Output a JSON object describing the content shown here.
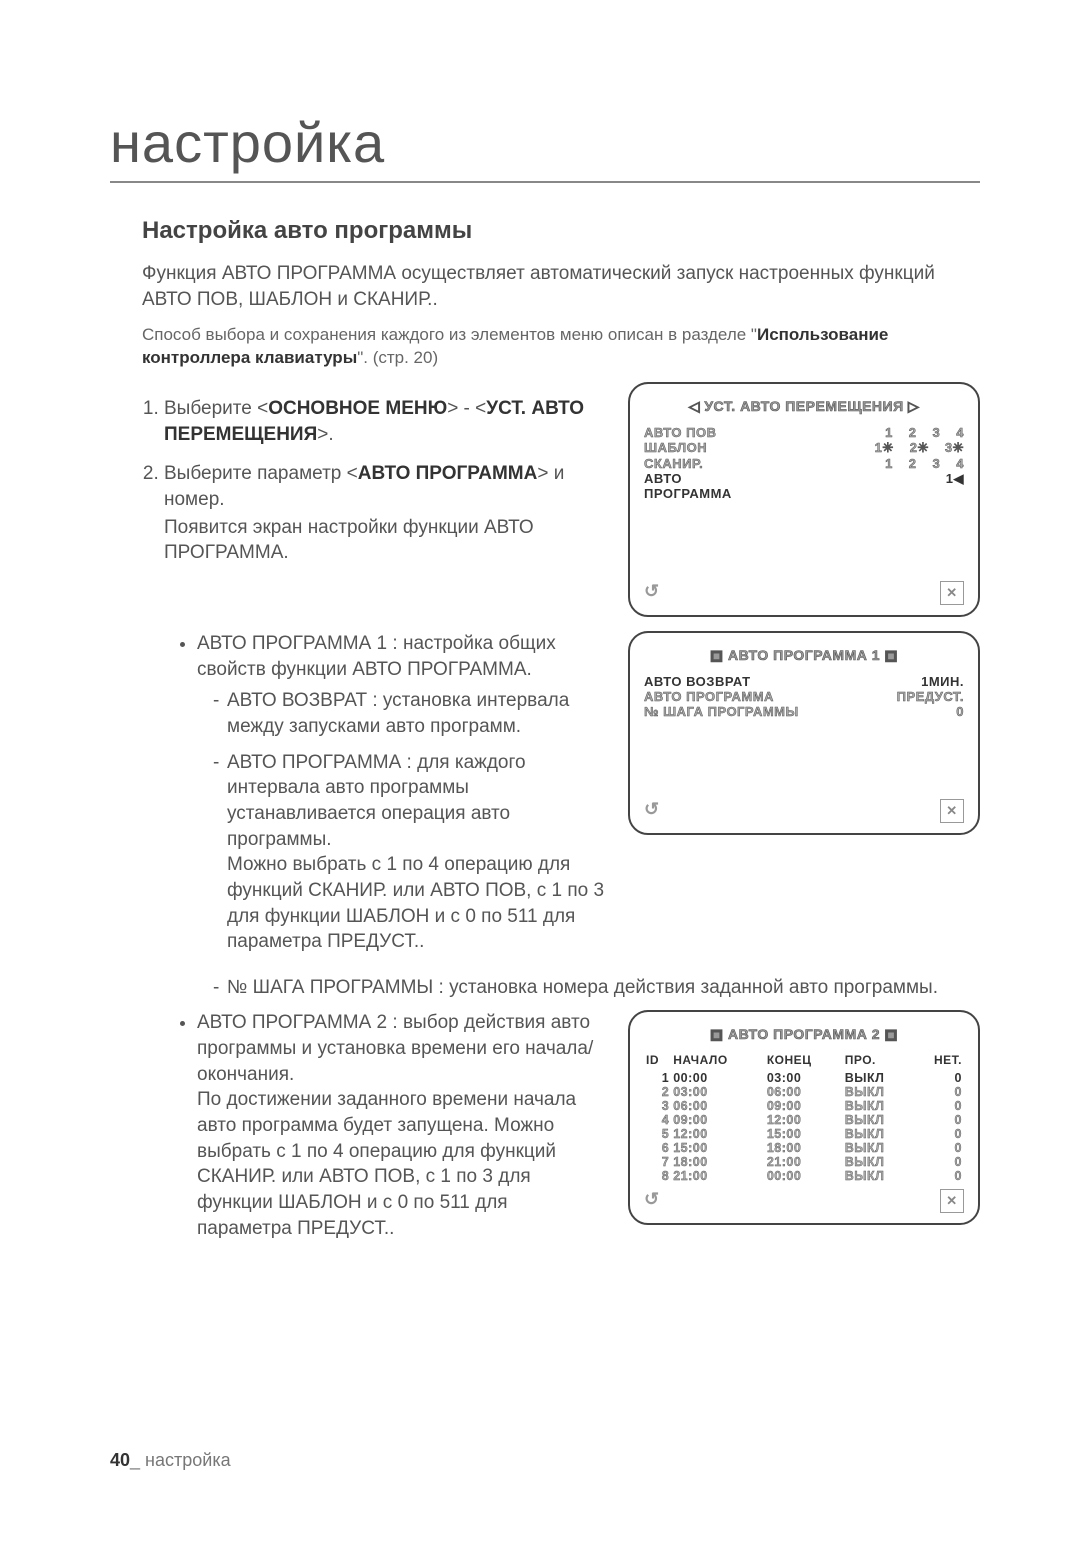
{
  "title": "настройка",
  "section": "Настройка авто программы",
  "intro": "Функция АВТО ПРОГРАММА осуществляет автоматический запуск настроенных функций АВТО ПОВ, ШАБЛОН и СКАНИР..",
  "note_pre": "Способ выбора и сохранения каждого из элементов меню описан в разделе \"",
  "note_bold": "Использование контроллера клавиатуры",
  "note_post": "\". (стр. 20)",
  "step1_pre": "Выберите <",
  "step1_b1": "ОСНОВНОЕ МЕНЮ",
  "step1_mid": "> - <",
  "step1_b2": "УСТ. АВТО ПЕРЕМЕЩЕНИЯ",
  "step1_post": ">.",
  "step2_pre": "Выберите параметр <",
  "step2_b": "АВТО ПРОГРАММА",
  "step2_post": "> и номер.",
  "step2_sub": "Появится экран настройки функции АВТО ПРОГРАММА.",
  "bul1": "АВТО ПРОГРАММА 1 : настройка общих свойств функции АВТО ПРОГРАММА.",
  "d1": "АВТО ВОЗВРАТ : установка интервала между запусками авто программ.",
  "d2a": "АВТО ПРОГРАММА : для каждого интервала авто программы устанавливается операция авто программы.",
  "d2b": "Можно выбрать с 1 по 4 операцию для функций СКАНИР. или АВТО ПОВ, с 1 по 3 для функции ШАБЛОН и с 0 по 511 для параметра ПРЕДУСТ..",
  "d3": "№ ШАГА ПРОГРАММЫ : установка номера действия заданной авто программы.",
  "bul2a": "АВТО ПРОГРАММА 2 : выбор действия авто программы и установка времени его начала/окончания.",
  "bul2b": "По достижении заданного времени начала авто программа будет запущена. Можно выбрать с 1 по 4 операцию для функций СКАНИР. или АВТО ПОВ, с 1 по 3 для функции ШАБЛОН и с 0 по 511 для параметра ПРЕДУСТ..",
  "osd1": {
    "title": "◁  УСТ. АВТО ПЕРЕМЕЩЕНИЯ  ▷",
    "rows": [
      {
        "label": "АВТО ПОВ",
        "nums": [
          "1",
          "2",
          "3",
          "4"
        ]
      },
      {
        "label": "ШАБЛОН",
        "nums": [
          "",
          "1✳",
          "2✳",
          "3✳"
        ]
      },
      {
        "label": "СКАНИР.",
        "nums": [
          "1",
          "2",
          "3",
          "4"
        ]
      }
    ],
    "selected": {
      "label": "АВТО ПРОГРАММА",
      "value": "1◀"
    }
  },
  "osd2": {
    "title": "▣  АВТО ПРОГРАММА 1  ▣",
    "rows": [
      {
        "label": "АВТО ВОЗВРАТ",
        "value": "1МИН.",
        "sel": true
      },
      {
        "label": "АВТО ПРОГРАММА",
        "value": "ПРЕДУСТ."
      },
      {
        "label": "№ ШАГА ПРОГРАММЫ",
        "value": "0"
      }
    ]
  },
  "osd3": {
    "title": "▣  АВТО ПРОГРАММА 2  ▣",
    "headers": [
      "ID",
      "НАЧАЛО",
      "КОНЕЦ",
      "ПРО.",
      "НЕТ."
    ],
    "rows": [
      {
        "id": "1",
        "start": "00:00",
        "end": "03:00",
        "pro": "ВЫКЛ",
        "net": "0",
        "sel": true
      },
      {
        "id": "2",
        "start": "03:00",
        "end": "06:00",
        "pro": "ВЫКЛ",
        "net": "0"
      },
      {
        "id": "3",
        "start": "06:00",
        "end": "09:00",
        "pro": "ВЫКЛ",
        "net": "0"
      },
      {
        "id": "4",
        "start": "09:00",
        "end": "12:00",
        "pro": "ВЫКЛ",
        "net": "0"
      },
      {
        "id": "5",
        "start": "12:00",
        "end": "15:00",
        "pro": "ВЫКЛ",
        "net": "0"
      },
      {
        "id": "6",
        "start": "15:00",
        "end": "18:00",
        "pro": "ВЫКЛ",
        "net": "0"
      },
      {
        "id": "7",
        "start": "18:00",
        "end": "21:00",
        "pro": "ВЫКЛ",
        "net": "0"
      },
      {
        "id": "8",
        "start": "21:00",
        "end": "00:00",
        "pro": "ВЫКЛ",
        "net": "0"
      }
    ]
  },
  "pagenum": "40",
  "pagelabel": "настройка"
}
